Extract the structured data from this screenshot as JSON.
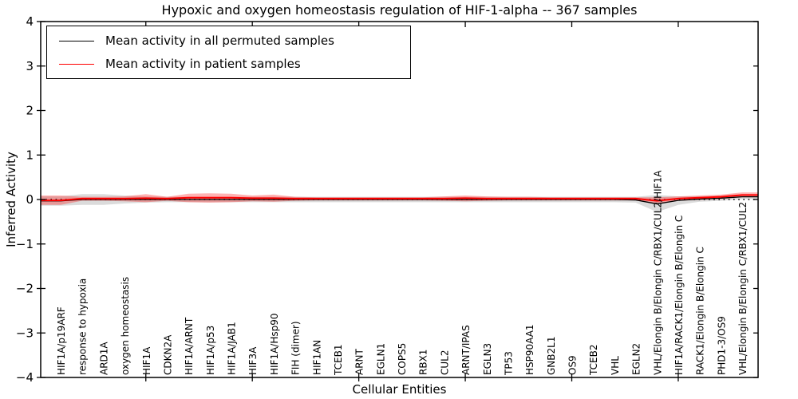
{
  "figure": {
    "title": "Hypoxic and oxygen homeostasis regulation of HIF-1-alpha -- 367 samples",
    "xlabel": "Cellular Entities",
    "ylabel": "Inferred Activity"
  },
  "legend": {
    "entries": [
      {
        "label": "Mean activity in all permuted samples",
        "color": "#000000"
      },
      {
        "label": "Mean activity in patient samples",
        "color": "#ff0000"
      }
    ]
  },
  "chart_data": {
    "type": "line",
    "title": "Hypoxic and oxygen homeostasis regulation of HIF-1-alpha -- 367 samples",
    "xlabel": "Cellular Entities",
    "ylabel": "Inferred Activity",
    "ylim": [
      -4,
      4
    ],
    "yticks": [
      4,
      3,
      2,
      1,
      0,
      -1,
      -2,
      -3,
      -4
    ],
    "grid": false,
    "legend_position": "upper left",
    "zero_line": {
      "y": 0,
      "style": "dotted",
      "color": "#000000"
    },
    "major_x_tick_indices": [
      4,
      9,
      14,
      19,
      24,
      29
    ],
    "categories": [
      "HIF1A/p19ARF",
      "response to hypoxia",
      "ARD1A",
      "oxygen homeostasis",
      "HIF1A",
      "CDKN2A",
      "HIF1A/ARNT",
      "HIF1A/p53",
      "HIF1A/JAB1",
      "HIF3A",
      "HIF1A/Hsp90",
      "FIH (dimer)",
      "HIF1AN",
      "TCEB1",
      "ARNT",
      "EGLN1",
      "COPS5",
      "RBX1",
      "CUL2",
      "ARNT/IPAS",
      "EGLN3",
      "TP53",
      "HSP90AA1",
      "GNB2L1",
      "OS9",
      "TCEB2",
      "VHL",
      "EGLN2",
      "VHL/Elongin B/Elongin C/RBX1/CUL2/HIF1A",
      "HIF1A/RACK1/Elongin B/Elongin C",
      "RACK1/Elongin B/Elongin C",
      "PHD1-3/OS9",
      "VHL/Elongin B/Elongin C/RBX1/CUL2"
    ],
    "series": [
      {
        "name": "Mean activity in all permuted samples",
        "color": "#000000",
        "line_width": 1.3,
        "band_color": "#999999",
        "band_opacity": 0.35,
        "mean": [
          -0.03,
          0,
          0,
          0,
          0,
          0,
          0,
          0,
          0,
          0,
          0,
          0,
          0,
          0,
          0,
          0,
          0,
          0,
          0,
          0,
          0,
          0,
          0,
          0,
          0,
          0,
          0,
          -0.01,
          -0.1,
          -0.02,
          0.01,
          0.03,
          0.06
        ],
        "upper": [
          0.07,
          0.12,
          0.12,
          0.09,
          0.07,
          0.06,
          0.06,
          0.06,
          0.06,
          0.06,
          0.06,
          0.06,
          0.06,
          0.06,
          0.06,
          0.06,
          0.06,
          0.06,
          0.06,
          0.06,
          0.06,
          0.06,
          0.06,
          0.06,
          0.06,
          0.06,
          0.06,
          0.06,
          0.1,
          0.07,
          0.07,
          0.08,
          0.11
        ],
        "lower": [
          -0.14,
          -0.12,
          -0.12,
          -0.09,
          -0.07,
          -0.06,
          -0.06,
          -0.06,
          -0.06,
          -0.06,
          -0.06,
          -0.06,
          -0.06,
          -0.06,
          -0.06,
          -0.06,
          -0.06,
          -0.06,
          -0.06,
          -0.06,
          -0.06,
          -0.06,
          -0.06,
          -0.06,
          -0.06,
          -0.06,
          -0.06,
          -0.07,
          -0.28,
          -0.12,
          -0.05,
          -0.03,
          0.01
        ]
      },
      {
        "name": "Mean activity in patient samples",
        "color": "#ff0000",
        "line_width": 2,
        "band_color": "#ff0000",
        "band_opacity": 0.3,
        "mean": [
          -0.02,
          0.02,
          0.02,
          0.02,
          0.03,
          0.02,
          0.04,
          0.04,
          0.04,
          0.03,
          0.03,
          0.02,
          0.02,
          0.02,
          0.02,
          0.02,
          0.02,
          0.02,
          0.02,
          0.03,
          0.02,
          0.02,
          0.02,
          0.02,
          0.02,
          0.02,
          0.02,
          0.02,
          -0.03,
          0.02,
          0.04,
          0.06,
          0.1
        ],
        "upper": [
          0.09,
          0.06,
          0.06,
          0.07,
          0.12,
          0.06,
          0.13,
          0.14,
          0.13,
          0.09,
          0.11,
          0.06,
          0.05,
          0.05,
          0.05,
          0.05,
          0.05,
          0.05,
          0.07,
          0.09,
          0.07,
          0.06,
          0.06,
          0.05,
          0.05,
          0.05,
          0.05,
          0.05,
          0.05,
          0.07,
          0.09,
          0.11,
          0.16
        ],
        "lower": [
          -0.12,
          -0.03,
          -0.03,
          -0.04,
          -0.06,
          -0.03,
          -0.06,
          -0.07,
          -0.06,
          -0.04,
          -0.05,
          -0.03,
          -0.02,
          -0.02,
          -0.02,
          -0.02,
          -0.02,
          -0.02,
          -0.03,
          -0.04,
          -0.03,
          -0.02,
          -0.02,
          -0.02,
          -0.02,
          -0.02,
          -0.02,
          -0.02,
          -0.1,
          -0.03,
          -0.01,
          0.01,
          0.05
        ]
      }
    ]
  }
}
